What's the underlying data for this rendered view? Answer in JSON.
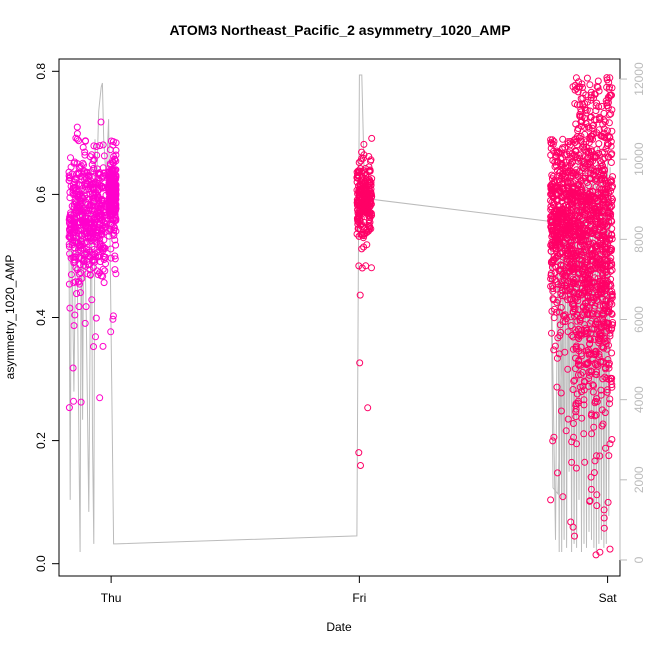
{
  "chart_data": {
    "type": "scatter",
    "title": "ATOM3 Northeast_Pacific_2 asymmetry_1020_AMP",
    "xlabel": "Date",
    "ylabel": "asymmetry_1020_AMP",
    "x_ticks": [
      "Thu",
      "Fri",
      "Sat"
    ],
    "xlim_days": [
      -0.21,
      2.05
    ],
    "ylim": [
      -0.02,
      0.82
    ],
    "y_ticks": [
      0.0,
      0.2,
      0.4,
      0.6,
      0.8
    ],
    "y_tick_labels": [
      "0.0",
      "0.2",
      "0.4",
      "0.6",
      "0.8"
    ],
    "y2lim": [
      -400,
      12500
    ],
    "y2_ticks": [
      0,
      2000,
      4000,
      6000,
      8000,
      10000,
      12000
    ],
    "y2_tick_labels": [
      "0",
      "2000",
      "4000",
      "6000",
      "8000",
      "10000",
      "12000"
    ],
    "colors": {
      "points_dense": "#ff00cc",
      "points_sparse": "#ff0066",
      "line": "#bbbbbb",
      "axis": "#000000",
      "right_axis": "#bbbbbb"
    },
    "grid": false,
    "legend": "none",
    "clusters": [
      {
        "day_range": [
          -0.17,
          -0.02
        ],
        "n": 520,
        "median": 0.56,
        "spread": 0.05,
        "min": 0.21,
        "max": 0.725,
        "color": "#ff00cc"
      },
      {
        "day_range": [
          -0.01,
          0.02
        ],
        "n": 260,
        "median": 0.6,
        "spread": 0.03,
        "min": 0.37,
        "max": 0.7,
        "color": "#ff00cc"
      },
      {
        "day_range": [
          0.99,
          1.05
        ],
        "n": 260,
        "median": 0.59,
        "spread": 0.03,
        "min": 0.065,
        "max": 0.7,
        "color": "#ff0066"
      },
      {
        "day_range": [
          1.77,
          1.86
        ],
        "n": 500,
        "median": 0.55,
        "spread": 0.07,
        "min": 0.05,
        "max": 0.69,
        "color": "#ff0066"
      },
      {
        "day_range": [
          1.86,
          2.02
        ],
        "n": 1100,
        "median": 0.52,
        "spread": 0.13,
        "min": 0.005,
        "max": 0.79,
        "color": "#ff0066"
      }
    ],
    "depth_line": {
      "days": [
        -0.17,
        -0.165,
        -0.16,
        -0.15,
        -0.14,
        -0.13,
        -0.125,
        -0.12,
        -0.115,
        -0.11,
        -0.1,
        -0.09,
        -0.08,
        -0.075,
        -0.07,
        -0.065,
        -0.06,
        -0.05,
        -0.04,
        -0.035,
        -0.03,
        -0.02,
        -0.01,
        0.01,
        0.02,
        0.99,
        1.0,
        1.01,
        1.02,
        1.04,
        1.05,
        1.83,
        1.8,
        1.78,
        1.77,
        1.79,
        1.8,
        1.805,
        1.81,
        1.815,
        1.82,
        1.825,
        1.83,
        1.835,
        1.84,
        1.845,
        1.85,
        1.855,
        1.86,
        1.865,
        1.87,
        1.875,
        1.88,
        1.885,
        1.89,
        1.895,
        1.9,
        1.905,
        1.91,
        1.915,
        1.92,
        1.925,
        1.93,
        1.935,
        1.94,
        1.945,
        1.95,
        1.955,
        1.96,
        1.965,
        1.97,
        1.975,
        1.98,
        1.985,
        1.99,
        1.995,
        2.0,
        2.005,
        2.01
      ],
      "values": [
        8500,
        1500,
        9000,
        4200,
        9500,
        3000,
        200,
        8800,
        3500,
        9500,
        6000,
        1200,
        9800,
        3000,
        400,
        10500,
        9000,
        11200,
        11800,
        11900,
        10500,
        9500,
        11000,
        400,
        400,
        600,
        12100,
        12100,
        9500,
        9000,
        9000,
        8400,
        1650,
        1800,
        8600,
        500,
        8500,
        200,
        9500,
        200,
        8700,
        500,
        9400,
        300,
        8800,
        2200,
        10000,
        200,
        9600,
        400,
        9300,
        300,
        10200,
        1500,
        9700,
        200,
        10500,
        400,
        9900,
        300,
        10000,
        700,
        9800,
        500,
        10200,
        300,
        9600,
        200,
        10300,
        400,
        9400,
        500,
        10100,
        300,
        9700,
        400,
        10000,
        1100,
        9800
      ]
    }
  }
}
